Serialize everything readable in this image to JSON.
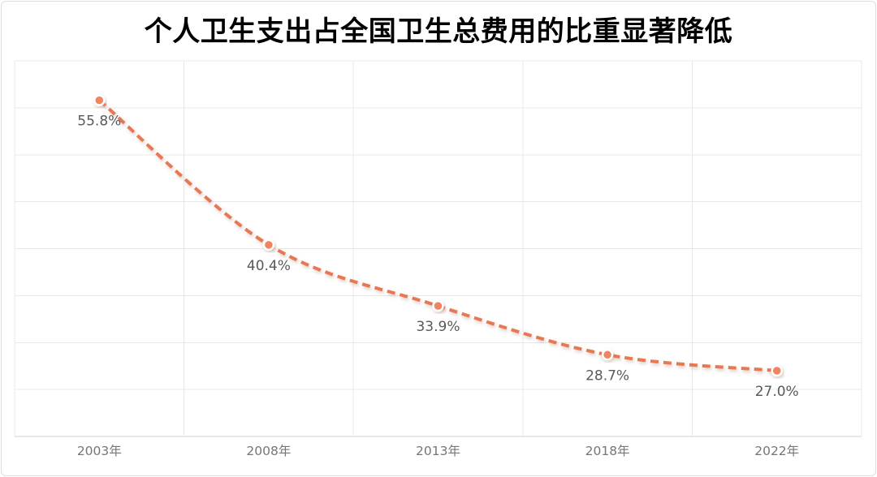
{
  "chart_data": {
    "type": "line",
    "title": "个人卫生支出占全国卫生总费用的比重显著降低",
    "categories": [
      "2003年",
      "2008年",
      "2013年",
      "2018年",
      "2022年"
    ],
    "values": [
      55.8,
      40.4,
      33.9,
      28.7,
      27.0
    ],
    "data_labels": [
      "55.8%",
      "40.4%",
      "33.9%",
      "28.7%",
      "27.0%"
    ],
    "xlabel": "",
    "ylabel": "",
    "ylim": [
      20,
      60
    ],
    "y_grid_step": 5,
    "grid": "on",
    "legend": "none",
    "line_style": "dashed",
    "smooth": true,
    "colors": {
      "line": "#E67853",
      "marker_fill": "#F0845F",
      "marker_ring": "#FFFFFF",
      "data_label": "#595959",
      "axis_label": "#767676",
      "gridline": "#E8E8E8",
      "axis_line": "#D0D0D0",
      "title": "#000000",
      "card_border": "#DCDCDC",
      "background": "#FFFFFF"
    }
  }
}
